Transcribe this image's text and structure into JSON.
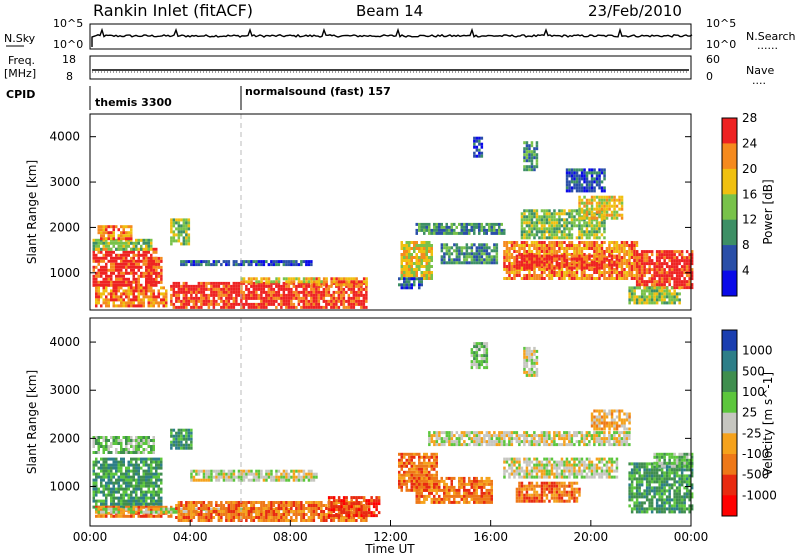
{
  "header": {
    "title": "Rankin Inlet (fitACF)",
    "beam": "Beam 14",
    "date": "23/Feb/2010"
  },
  "top_panel": {
    "left_label": "N.Sky",
    "left_ticks": [
      "10^5",
      "10^0"
    ],
    "right_ticks": [
      "10^5",
      "10^0"
    ],
    "right_label": "N.Search",
    "right_legend": "......"
  },
  "freq_panel": {
    "left_label_1": "Freq.",
    "left_label_2": "[MHz]",
    "left_ticks": [
      "18",
      "8"
    ],
    "right_ticks": [
      "60",
      "0"
    ],
    "right_label": "Nave",
    "right_legend": "...."
  },
  "cpid": {
    "label": "CPID",
    "entries": [
      {
        "text": "themis 3300",
        "start_hour": 0
      },
      {
        "text": "normalsound (fast) 157",
        "start_hour": 6
      }
    ]
  },
  "chart_data": [
    {
      "type": "heatmap",
      "ylabel": "Slant Range [km]",
      "ylim": [
        180,
        4500
      ],
      "yticks": [
        "1000",
        "2000",
        "3000",
        "4000"
      ],
      "xlim": [
        0,
        24
      ],
      "colorbar_label": "Power [dB]",
      "colorbar_ticks": [
        "4",
        "8",
        "12",
        "16",
        "20",
        "24",
        "28"
      ],
      "colorbar_colors": [
        "#0a0ae8",
        "#2a4fa8",
        "#3d8f65",
        "#78c24a",
        "#f0c010",
        "#f58a1e",
        "#ee2222"
      ],
      "patches": [
        {
          "t0": 0.1,
          "t1": 2.6,
          "r0": 700,
          "r1": 1550,
          "level": 6
        },
        {
          "t0": 0.1,
          "t1": 2.4,
          "r0": 1550,
          "r1": 1750,
          "level": 3
        },
        {
          "t0": 0.3,
          "t1": 1.6,
          "r0": 1750,
          "r1": 2050,
          "level": 5
        },
        {
          "t0": 0.2,
          "t1": 3.0,
          "r0": 260,
          "r1": 700,
          "level": 5
        },
        {
          "t0": 2.2,
          "t1": 2.8,
          "r0": 800,
          "r1": 1350,
          "level": 6
        },
        {
          "t0": 3.2,
          "t1": 3.9,
          "r0": 1650,
          "r1": 2200,
          "level": 3
        },
        {
          "t0": 3.6,
          "t1": 8.8,
          "r0": 1150,
          "r1": 1280,
          "level": 1
        },
        {
          "t0": 3.2,
          "t1": 11.0,
          "r0": 260,
          "r1": 800,
          "level": 6
        },
        {
          "t0": 8.8,
          "t1": 11.0,
          "r0": 750,
          "r1": 900,
          "level": 5
        },
        {
          "t0": 6.0,
          "t1": 9.2,
          "r0": 790,
          "r1": 900,
          "level": 4
        },
        {
          "t0": 12.4,
          "t1": 13.6,
          "r0": 900,
          "r1": 1700,
          "level": 4
        },
        {
          "t0": 12.3,
          "t1": 13.2,
          "r0": 700,
          "r1": 900,
          "level": 1
        },
        {
          "t0": 13.0,
          "t1": 16.5,
          "r0": 1900,
          "r1": 2100,
          "level": 2
        },
        {
          "t0": 14.0,
          "t1": 16.2,
          "r0": 1250,
          "r1": 1650,
          "level": 2
        },
        {
          "t0": 16.5,
          "t1": 21.8,
          "r0": 900,
          "r1": 1700,
          "level": 5
        },
        {
          "t0": 17.0,
          "t1": 21.0,
          "r0": 1100,
          "r1": 1400,
          "level": 6
        },
        {
          "t0": 17.2,
          "t1": 20.5,
          "r0": 1800,
          "r1": 2400,
          "level": 3
        },
        {
          "t0": 19.5,
          "t1": 21.2,
          "r0": 2200,
          "r1": 2700,
          "level": 4
        },
        {
          "t0": 21.8,
          "t1": 24.0,
          "r0": 700,
          "r1": 1500,
          "level": 6
        },
        {
          "t0": 21.5,
          "t1": 23.5,
          "r0": 350,
          "r1": 700,
          "level": 3
        },
        {
          "t0": 15.3,
          "t1": 15.6,
          "r0": 3600,
          "r1": 4000,
          "level": 1
        },
        {
          "t0": 17.3,
          "t1": 17.8,
          "r0": 3300,
          "r1": 3900,
          "level": 2
        },
        {
          "t0": 19.0,
          "t1": 20.5,
          "r0": 2800,
          "r1": 3300,
          "level": 1
        }
      ]
    },
    {
      "type": "heatmap",
      "ylabel": "Slant Range [km]",
      "ylim": [
        180,
        4500
      ],
      "yticks": [
        "1000",
        "2000",
        "3000",
        "4000"
      ],
      "xlim": [
        0,
        24
      ],
      "xticks": [
        "00:00",
        "04:00",
        "08:00",
        "12:00",
        "16:00",
        "20:00",
        "00:00"
      ],
      "xlabel": "Time UT",
      "colorbar_label": "Velocity [m s^-1]",
      "colorbar_ticks": [
        "1000",
        "500",
        "100",
        "25",
        "-25",
        "-100",
        "-500",
        "-1000"
      ],
      "colorbar_colors": [
        "#1a3eb0",
        "#2d7e88",
        "#3f8e4e",
        "#5cc63c",
        "#c6c6c0",
        "#f5a21c",
        "#ee7818",
        "#e82a10",
        "#ff0000"
      ],
      "patches": [
        {
          "t0": 0.1,
          "t1": 2.8,
          "r0": 600,
          "r1": 1600,
          "level": 2
        },
        {
          "t0": 0.1,
          "t1": 2.5,
          "r0": 1700,
          "r1": 2050,
          "level": 3
        },
        {
          "t0": 0.2,
          "t1": 3.2,
          "r0": 380,
          "r1": 600,
          "level": 6
        },
        {
          "t0": 0.2,
          "t1": 8.0,
          "r0": 440,
          "r1": 560,
          "level": 4
        },
        {
          "t0": 3.2,
          "t1": 4.0,
          "r0": 1800,
          "r1": 2200,
          "level": 2
        },
        {
          "t0": 3.4,
          "t1": 11.0,
          "r0": 300,
          "r1": 700,
          "level": 6
        },
        {
          "t0": 4.0,
          "t1": 9.0,
          "r0": 1150,
          "r1": 1350,
          "level": 4
        },
        {
          "t0": 9.5,
          "t1": 11.5,
          "r0": 400,
          "r1": 800,
          "level": 7
        },
        {
          "t0": 12.3,
          "t1": 13.8,
          "r0": 900,
          "r1": 1700,
          "level": 6
        },
        {
          "t0": 13.0,
          "t1": 16.0,
          "r0": 700,
          "r1": 1200,
          "level": 6
        },
        {
          "t0": 13.5,
          "t1": 21.5,
          "r0": 1900,
          "r1": 2150,
          "level": 4
        },
        {
          "t0": 16.5,
          "t1": 21.0,
          "r0": 1200,
          "r1": 1600,
          "level": 4
        },
        {
          "t0": 17.0,
          "t1": 19.5,
          "r0": 700,
          "r1": 1100,
          "level": 6
        },
        {
          "t0": 20.0,
          "t1": 21.5,
          "r0": 2200,
          "r1": 2600,
          "level": 5
        },
        {
          "t0": 21.5,
          "t1": 24.0,
          "r0": 500,
          "r1": 1500,
          "level": 2
        },
        {
          "t0": 22.5,
          "t1": 24.0,
          "r0": 1400,
          "r1": 1700,
          "level": 3
        },
        {
          "t0": 17.3,
          "t1": 17.8,
          "r0": 3300,
          "r1": 3900,
          "level": 4
        },
        {
          "t0": 15.2,
          "t1": 15.8,
          "r0": 3500,
          "r1": 4000,
          "level": 3
        }
      ]
    }
  ]
}
